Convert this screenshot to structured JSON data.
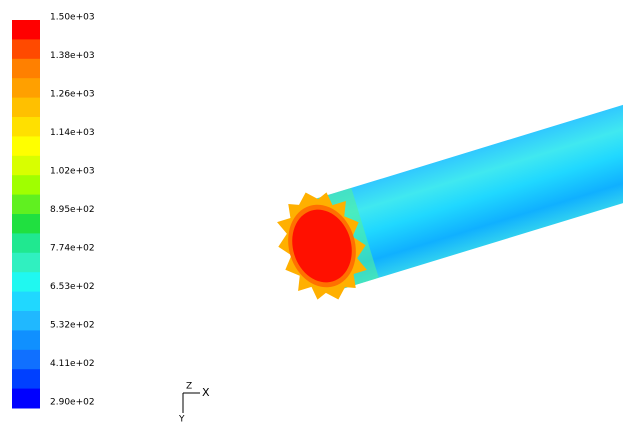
{
  "colorbar": {
    "labels": [
      "1.50e+03",
      "1.38e+03",
      "1.26e+03",
      "1.14e+03",
      "1.02e+03",
      "8.95e+02",
      "7.74e+02",
      "6.53e+02",
      "5.32e+02",
      "4.11e+02",
      "2.90e+02"
    ]
  },
  "axes": {
    "labels": [
      "Z",
      "X",
      "Y"
    ]
  }
}
